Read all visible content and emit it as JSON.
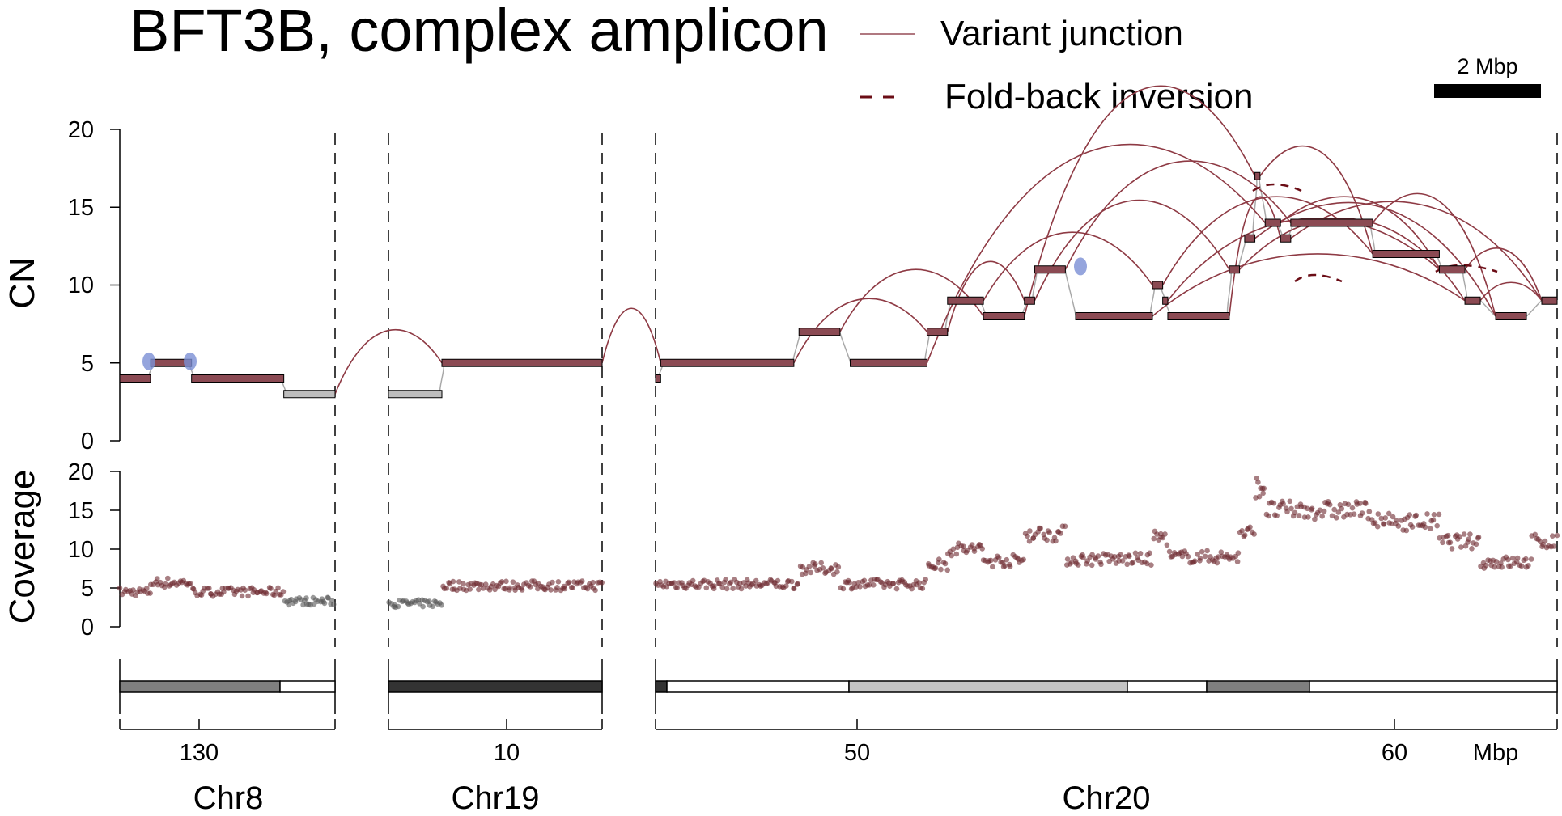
{
  "title": "BFT3B, complex amplicon",
  "legend": {
    "variant_junction": "Variant junction",
    "foldback_inversion": "Fold-back inversion"
  },
  "scale_bar": {
    "label": "2 Mbp",
    "length_mbp": 2
  },
  "colors": {
    "segment": "#8b4a53",
    "segment_gray": "#bdbdbd",
    "junction": "#8e3a44",
    "foldback": "#6b0d16",
    "coverage_point": "#6e2a30",
    "coverage_point_gray": "#555555",
    "blue_marker": "#7b8fd4"
  },
  "axes": {
    "cn": {
      "label": "CN",
      "ticks": [
        "0",
        "5",
        "10",
        "15",
        "20"
      ],
      "ylim": [
        0,
        20
      ]
    },
    "coverage": {
      "label": "Coverage",
      "ticks": [
        "0",
        "5",
        "10",
        "15",
        "20"
      ],
      "ylim": [
        0,
        20
      ]
    },
    "x_unit": "Mbp"
  },
  "panels": [
    {
      "name": "Chr8",
      "tick": "130"
    },
    {
      "name": "Chr19",
      "tick": "10"
    },
    {
      "name": "Chr20",
      "ticks": [
        "50",
        "60"
      ]
    }
  ],
  "chart_data": [
    {
      "type": "line",
      "title": "BFT3B, complex amplicon",
      "ylabel": "CN",
      "ylim": [
        0,
        20
      ],
      "grid": false,
      "legend_placement": "top",
      "series": [
        {
          "name": "Variant junction"
        },
        {
          "name": "Fold-back inversion"
        }
      ],
      "segments": [
        {
          "chr": "Chr8",
          "start": 126.6,
          "end": 127.2,
          "cn": 4
        },
        {
          "chr": "Chr8",
          "start": 127.2,
          "end": 128.0,
          "cn": 5
        },
        {
          "chr": "Chr8",
          "start": 128.0,
          "end": 129.8,
          "cn": 4
        },
        {
          "chr": "Chr8",
          "start": 129.8,
          "end": 130.8,
          "cn": 3,
          "gray": true
        },
        {
          "chr": "Chr19",
          "start": 7.2,
          "end": 8.2,
          "cn": 3,
          "gray": true
        },
        {
          "chr": "Chr19",
          "start": 8.2,
          "end": 11.2,
          "cn": 5
        },
        {
          "chr": "Chr20",
          "start": 46.2,
          "end": 46.3,
          "cn": 4
        },
        {
          "chr": "Chr20",
          "start": 46.3,
          "end": 48.9,
          "cn": 5
        },
        {
          "chr": "Chr20",
          "start": 49.0,
          "end": 49.8,
          "cn": 7
        },
        {
          "chr": "Chr20",
          "start": 50.0,
          "end": 51.5,
          "cn": 5
        },
        {
          "chr": "Chr20",
          "start": 51.5,
          "end": 51.9,
          "cn": 7
        },
        {
          "chr": "Chr20",
          "start": 51.9,
          "end": 52.6,
          "cn": 9
        },
        {
          "chr": "Chr20",
          "start": 52.6,
          "end": 53.4,
          "cn": 8
        },
        {
          "chr": "Chr20",
          "start": 53.4,
          "end": 53.6,
          "cn": 9
        },
        {
          "chr": "Chr20",
          "start": 53.6,
          "end": 54.2,
          "cn": 11
        },
        {
          "chr": "Chr20",
          "start": 54.4,
          "end": 55.9,
          "cn": 8
        },
        {
          "chr": "Chr20",
          "start": 55.9,
          "end": 56.1,
          "cn": 10
        },
        {
          "chr": "Chr20",
          "start": 56.1,
          "end": 56.2,
          "cn": 9
        },
        {
          "chr": "Chr20",
          "start": 56.2,
          "end": 57.4,
          "cn": 8
        },
        {
          "chr": "Chr20",
          "start": 57.4,
          "end": 57.6,
          "cn": 11
        },
        {
          "chr": "Chr20",
          "start": 57.7,
          "end": 57.9,
          "cn": 13
        },
        {
          "chr": "Chr20",
          "start": 57.9,
          "end": 58.0,
          "cn": 17
        },
        {
          "chr": "Chr20",
          "start": 58.1,
          "end": 58.4,
          "cn": 14
        },
        {
          "chr": "Chr20",
          "start": 58.4,
          "end": 58.6,
          "cn": 13
        },
        {
          "chr": "Chr20",
          "start": 58.6,
          "end": 60.2,
          "cn": 14
        },
        {
          "chr": "Chr20",
          "start": 60.2,
          "end": 61.5,
          "cn": 12
        },
        {
          "chr": "Chr20",
          "start": 61.5,
          "end": 62.0,
          "cn": 11
        },
        {
          "chr": "Chr20",
          "start": 62.0,
          "end": 62.3,
          "cn": 9
        },
        {
          "chr": "Chr20",
          "start": 62.6,
          "end": 63.2,
          "cn": 8
        },
        {
          "chr": "Chr20",
          "start": 63.5,
          "end": 63.8,
          "cn": 9
        }
      ]
    },
    {
      "type": "scatter",
      "ylabel": "Coverage",
      "ylim": [
        0,
        20
      ],
      "grid": false,
      "levels": [
        {
          "chr": "Chr8",
          "start": 126.6,
          "end": 127.2,
          "value": 4.5
        },
        {
          "chr": "Chr8",
          "start": 127.2,
          "end": 128.0,
          "value": 5.7
        },
        {
          "chr": "Chr8",
          "start": 128.0,
          "end": 129.8,
          "value": 4.5
        },
        {
          "chr": "Chr8",
          "start": 129.8,
          "end": 130.8,
          "value": 3.3,
          "gray": true
        },
        {
          "chr": "Chr19",
          "start": 7.2,
          "end": 8.2,
          "value": 3.0,
          "gray": true
        },
        {
          "chr": "Chr19",
          "start": 8.2,
          "end": 11.2,
          "value": 5.3
        },
        {
          "chr": "Chr20",
          "start": 46.2,
          "end": 49.0,
          "value": 5.5
        },
        {
          "chr": "Chr20",
          "start": 49.0,
          "end": 49.8,
          "value": 7.5
        },
        {
          "chr": "Chr20",
          "start": 49.8,
          "end": 51.5,
          "value": 5.5
        },
        {
          "chr": "Chr20",
          "start": 51.5,
          "end": 51.9,
          "value": 8.0
        },
        {
          "chr": "Chr20",
          "start": 51.9,
          "end": 52.6,
          "value": 10.0
        },
        {
          "chr": "Chr20",
          "start": 52.6,
          "end": 53.4,
          "value": 8.5
        },
        {
          "chr": "Chr20",
          "start": 53.4,
          "end": 54.2,
          "value": 12.0
        },
        {
          "chr": "Chr20",
          "start": 54.2,
          "end": 55.9,
          "value": 8.7
        },
        {
          "chr": "Chr20",
          "start": 55.9,
          "end": 56.2,
          "value": 11.5
        },
        {
          "chr": "Chr20",
          "start": 56.2,
          "end": 57.6,
          "value": 9.0
        },
        {
          "chr": "Chr20",
          "start": 57.6,
          "end": 57.9,
          "value": 12.0
        },
        {
          "chr": "Chr20",
          "start": 57.9,
          "end": 58.1,
          "value": 18.0
        },
        {
          "chr": "Chr20",
          "start": 58.1,
          "end": 60.2,
          "value": 15.0
        },
        {
          "chr": "Chr20",
          "start": 60.2,
          "end": 61.5,
          "value": 13.5
        },
        {
          "chr": "Chr20",
          "start": 61.5,
          "end": 62.3,
          "value": 11.0
        },
        {
          "chr": "Chr20",
          "start": 62.3,
          "end": 63.3,
          "value": 8.3
        },
        {
          "chr": "Chr20",
          "start": 63.3,
          "end": 63.8,
          "value": 11.0
        }
      ]
    }
  ]
}
